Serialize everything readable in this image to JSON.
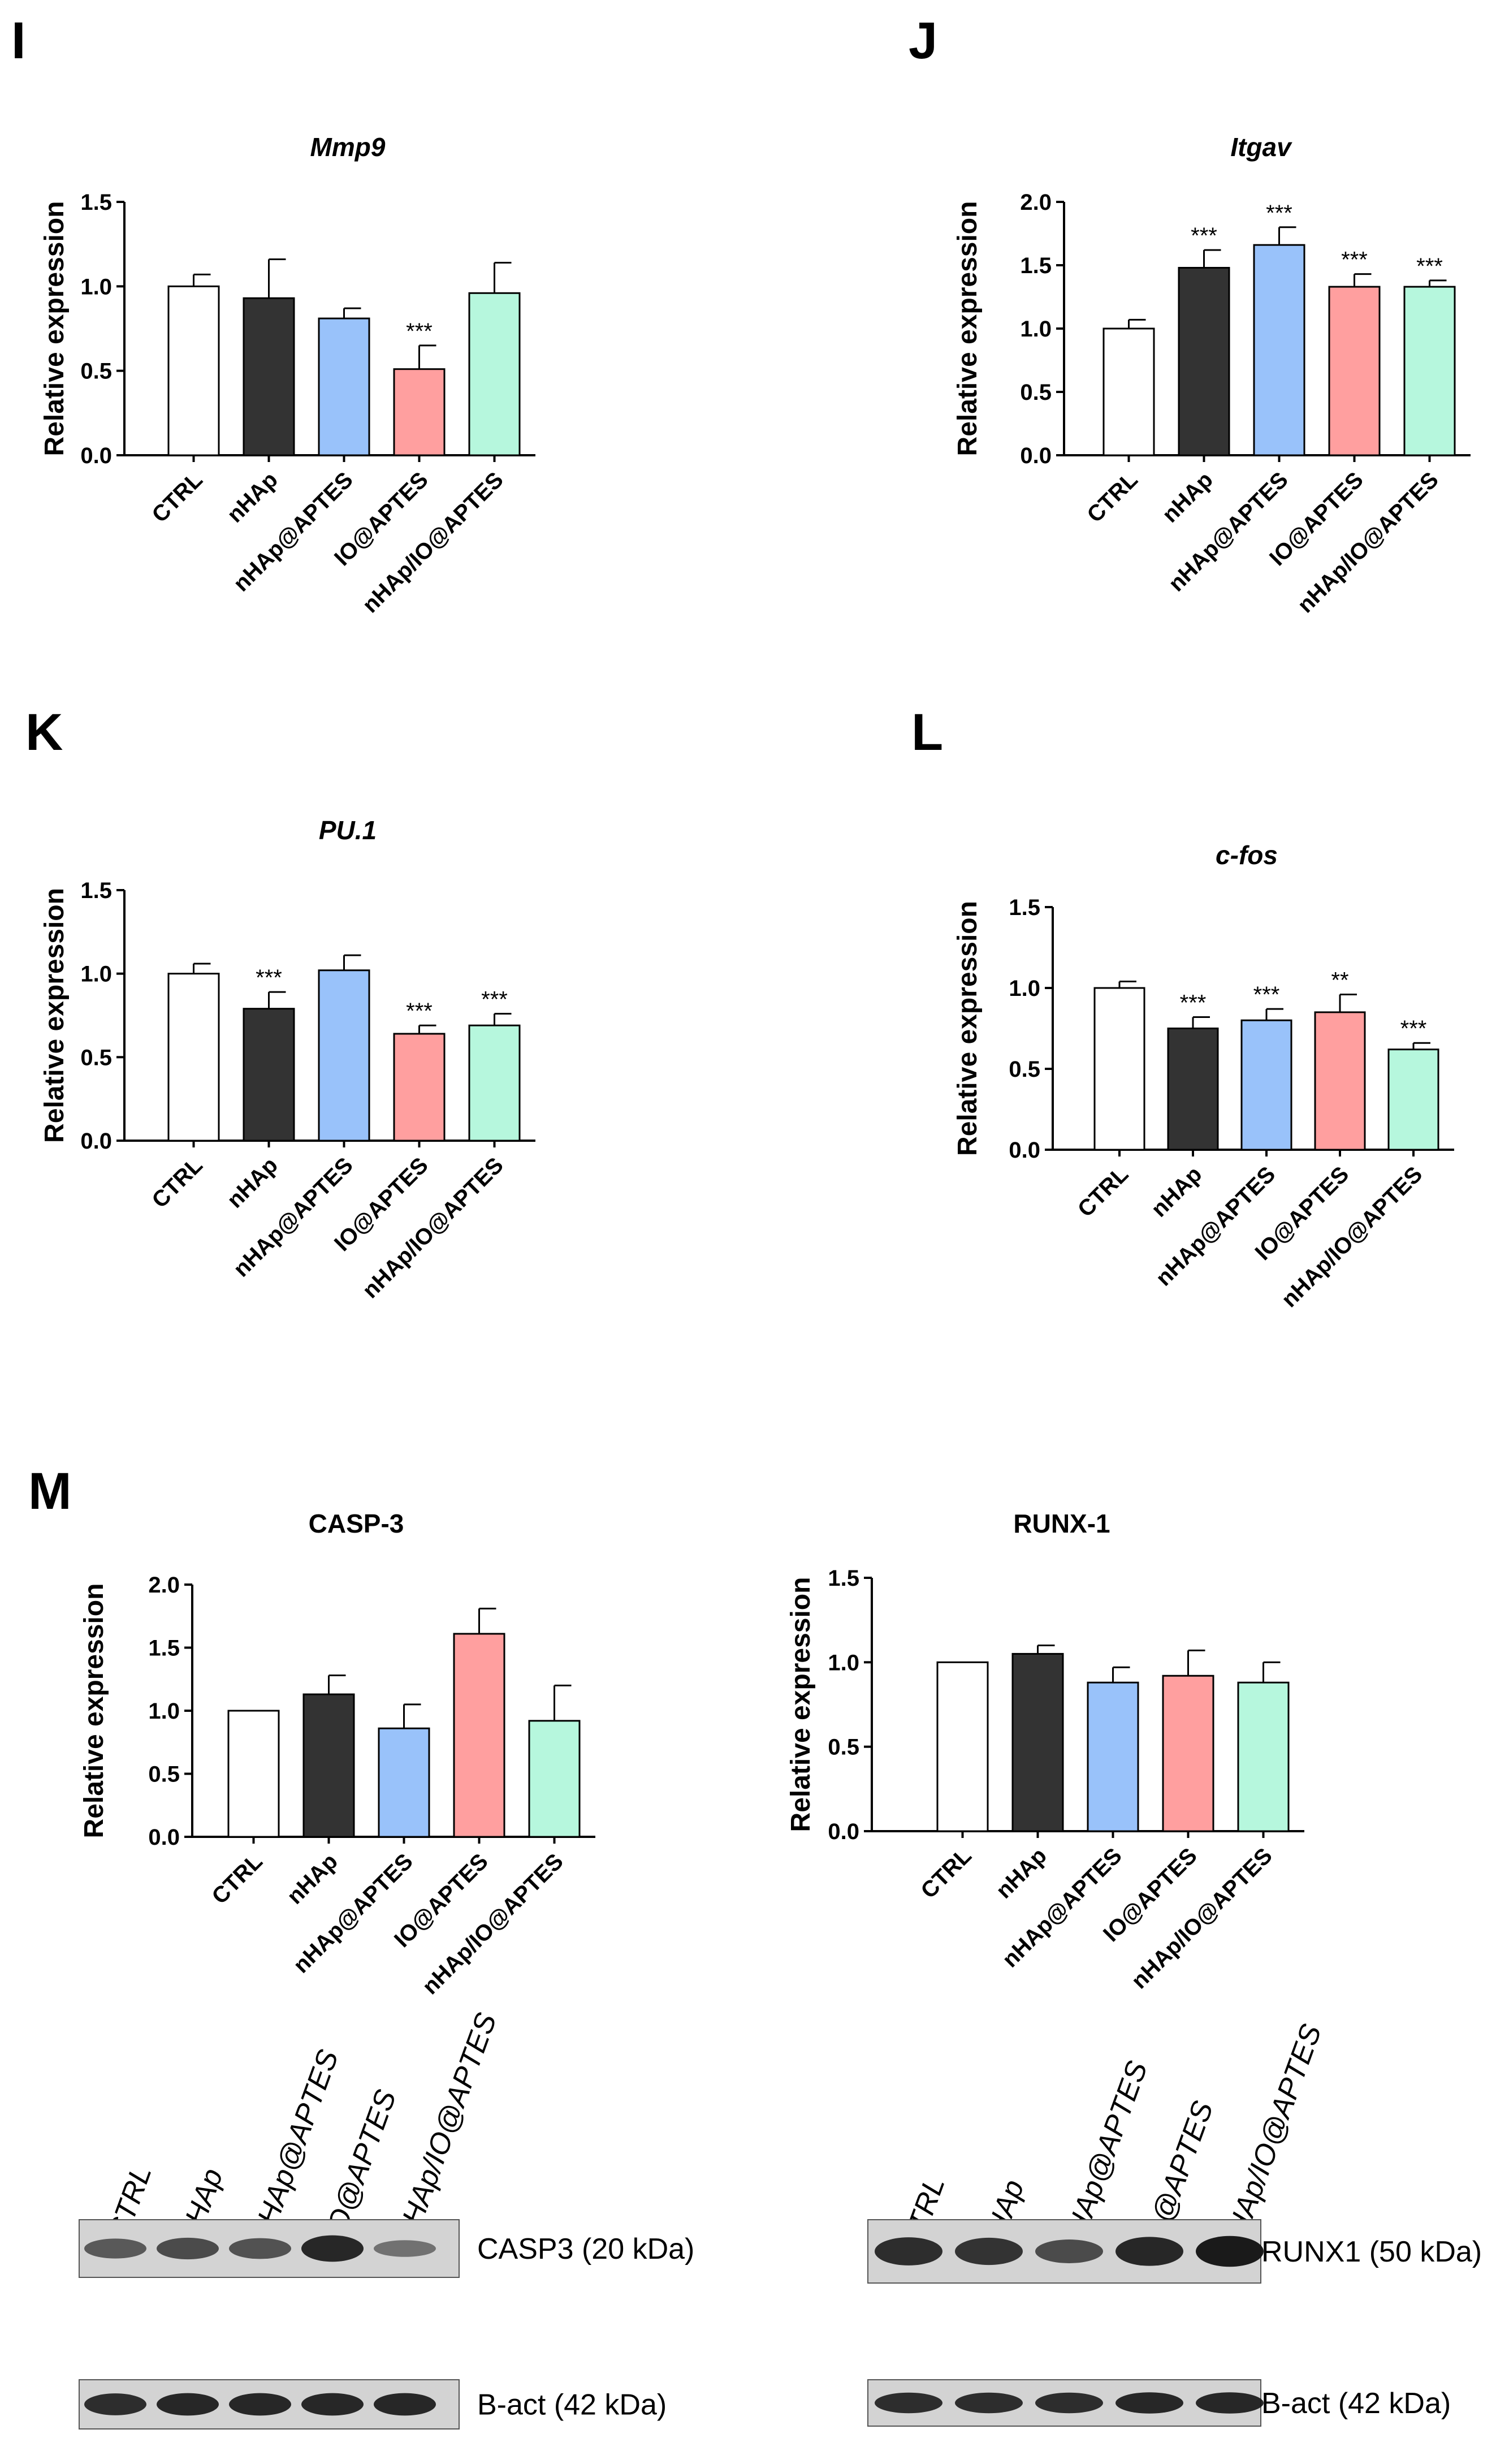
{
  "colors": {
    "CTRL": "#ffffff",
    "nHAp": "#333333",
    "nHAp@APTES": "#99c2fa",
    "IO@APTES": "#ff9f9f",
    "nHAp/IO@APTES": "#b6f7dd",
    "axis": "#000000",
    "blot_bg": "#d3d3d3",
    "band": "#141414"
  },
  "panels": [
    {
      "id": "I",
      "letter": "I"
    },
    {
      "id": "J",
      "letter": "J"
    },
    {
      "id": "K",
      "letter": "K"
    },
    {
      "id": "L",
      "letter": "L"
    },
    {
      "id": "M",
      "letter": "M"
    }
  ],
  "chart_data": [
    {
      "id": "mmp9",
      "panel": "I",
      "type": "bar",
      "title": "Mmp9",
      "title_italic": true,
      "ylabel": "Relative expression",
      "xlabel": "",
      "categories": [
        "CTRL",
        "nHAp",
        "nHAp@APTES",
        "IO@APTES",
        "nHAp/IO@APTES"
      ],
      "values": [
        1.0,
        0.93,
        0.81,
        0.51,
        0.96
      ],
      "errors": [
        0.07,
        0.23,
        0.06,
        0.14,
        0.18
      ],
      "significance": [
        "",
        "",
        "",
        "***",
        ""
      ],
      "ylim": [
        0,
        1.5
      ],
      "yticks": [
        "0.0",
        "0.5",
        "1.0",
        "1.5"
      ],
      "ytick_values": [
        0,
        0.5,
        1.0,
        1.5
      ]
    },
    {
      "id": "itgav",
      "panel": "J",
      "type": "bar",
      "title": "Itgav",
      "title_italic": true,
      "ylabel": "Relative expression",
      "xlabel": "",
      "categories": [
        "CTRL",
        "nHAp",
        "nHAp@APTES",
        "IO@APTES",
        "nHAp/IO@APTES"
      ],
      "values": [
        1.0,
        1.48,
        1.66,
        1.33,
        1.33
      ],
      "errors": [
        0.07,
        0.14,
        0.14,
        0.1,
        0.05
      ],
      "significance": [
        "",
        "***",
        "***",
        "***",
        "***"
      ],
      "ylim": [
        0,
        2.0
      ],
      "yticks": [
        "0.0",
        "0.5",
        "1.0",
        "1.5",
        "2.0"
      ],
      "ytick_values": [
        0,
        0.5,
        1.0,
        1.5,
        2.0
      ]
    },
    {
      "id": "pu1",
      "panel": "K",
      "type": "bar",
      "title": "PU.1",
      "title_italic": true,
      "ylabel": "Relative expression",
      "xlabel": "",
      "categories": [
        "CTRL",
        "nHAp",
        "nHAp@APTES",
        "IO@APTES",
        "nHAp/IO@APTES"
      ],
      "values": [
        1.0,
        0.79,
        1.02,
        0.64,
        0.69
      ],
      "errors": [
        0.06,
        0.1,
        0.09,
        0.05,
        0.07
      ],
      "significance": [
        "",
        "***",
        "",
        "***",
        "***"
      ],
      "ylim": [
        0,
        1.5
      ],
      "yticks": [
        "0.0",
        "0.5",
        "1.0",
        "1.5"
      ],
      "ytick_values": [
        0,
        0.5,
        1.0,
        1.5
      ]
    },
    {
      "id": "cfos",
      "panel": "L",
      "type": "bar",
      "title": "c-fos",
      "title_italic": true,
      "ylabel": "Relative expression",
      "xlabel": "",
      "categories": [
        "CTRL",
        "nHAp",
        "nHAp@APTES",
        "IO@APTES",
        "nHAp/IO@APTES"
      ],
      "values": [
        1.0,
        0.75,
        0.8,
        0.85,
        0.62
      ],
      "errors": [
        0.04,
        0.07,
        0.07,
        0.11,
        0.04
      ],
      "significance": [
        "",
        "***",
        "***",
        "**",
        "***"
      ],
      "ylim": [
        0,
        1.5
      ],
      "yticks": [
        "0.0",
        "0.5",
        "1.0",
        "1.5"
      ],
      "ytick_values": [
        0,
        0.5,
        1.0,
        1.5
      ]
    },
    {
      "id": "casp3",
      "panel": "M",
      "type": "bar",
      "title": "CASP-3",
      "title_italic": false,
      "ylabel": "Relative expression",
      "xlabel": "",
      "categories": [
        "CTRL",
        "nHAp",
        "nHAp@APTES",
        "IO@APTES",
        "nHAp/IO@APTES"
      ],
      "values": [
        1.0,
        1.13,
        0.86,
        1.61,
        0.92
      ],
      "errors": [
        0.0,
        0.15,
        0.19,
        0.2,
        0.28
      ],
      "significance": [
        "",
        "",
        "",
        "",
        ""
      ],
      "ylim": [
        0,
        2.0
      ],
      "yticks": [
        "0.0",
        "0.5",
        "1.0",
        "1.5",
        "2.0"
      ],
      "ytick_values": [
        0,
        0.5,
        1.0,
        1.5,
        2.0
      ]
    },
    {
      "id": "runx1",
      "panel": "M",
      "type": "bar",
      "title": "RUNX-1",
      "title_italic": false,
      "ylabel": "Relative expression",
      "xlabel": "",
      "categories": [
        "CTRL",
        "nHAp",
        "nHAp@APTES",
        "IO@APTES",
        "nHAp/IO@APTES"
      ],
      "values": [
        1.0,
        1.05,
        0.88,
        0.92,
        0.88
      ],
      "errors": [
        0.0,
        0.05,
        0.09,
        0.15,
        0.12
      ],
      "significance": [
        "",
        "",
        "",
        "",
        ""
      ],
      "ylim": [
        0,
        1.5
      ],
      "yticks": [
        "0.0",
        "0.5",
        "1.0",
        "1.5"
      ],
      "ytick_values": [
        0,
        0.5,
        1.0,
        1.5
      ]
    }
  ],
  "blots": [
    {
      "id": "blot-casp3",
      "lanes": [
        "CTRL",
        "nHAp",
        "nHAp@APTES",
        "IO@APTES",
        "nHAp/IO@APTES"
      ],
      "rows": [
        {
          "label": "CASP3 (20 kDa)",
          "intensities": [
            0.45,
            0.55,
            0.5,
            0.85,
            0.25
          ]
        },
        {
          "label": "B-act (42 kDa)",
          "intensities": [
            0.8,
            0.85,
            0.85,
            0.85,
            0.85
          ]
        }
      ]
    },
    {
      "id": "blot-runx1",
      "lanes": [
        "CTRL",
        "nHAp",
        "nHAp@APTES",
        "IO@APTES",
        "nHAp/IO@APTES"
      ],
      "rows": [
        {
          "label": "RUNX1 (50 kDa)",
          "intensities": [
            0.8,
            0.75,
            0.55,
            0.85,
            0.95
          ]
        },
        {
          "label": "B-act (42 kDa)",
          "intensities": [
            0.8,
            0.8,
            0.8,
            0.85,
            0.85
          ]
        }
      ]
    }
  ]
}
